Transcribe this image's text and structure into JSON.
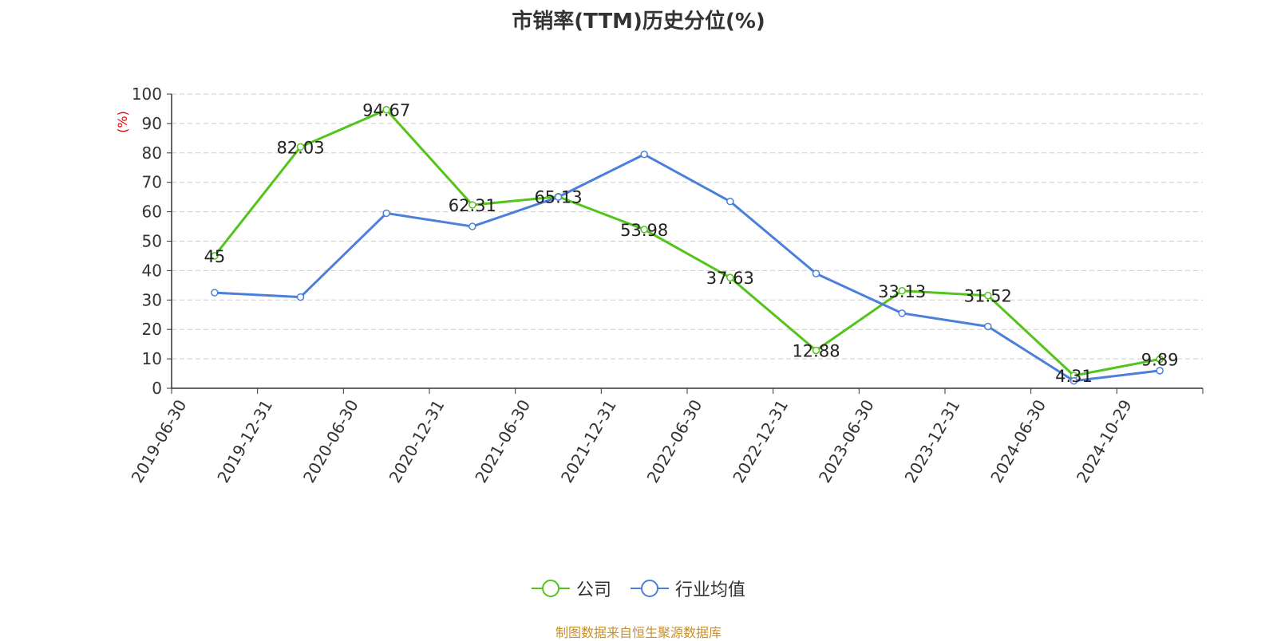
{
  "title": "市销率(TTM)历史分位(%)",
  "source": "制图数据来自恒生聚源数据库",
  "chart_data": {
    "type": "line",
    "title": "市销率(TTM)历史分位(%)",
    "ylabel": "(%)",
    "ylim": [
      0,
      100
    ],
    "yticks": [
      0,
      10,
      20,
      30,
      40,
      50,
      60,
      70,
      80,
      90,
      100
    ],
    "grid": true,
    "legend_position": "bottom-center",
    "categories": [
      "2019-06-30",
      "2019-12-31",
      "2020-06-30",
      "2020-12-31",
      "2021-06-30",
      "2021-12-31",
      "2022-06-30",
      "2022-12-31",
      "2023-06-30",
      "2023-12-31",
      "2024-06-30",
      "2024-10-29"
    ],
    "series": [
      {
        "name": "公司",
        "color": "#52c41a",
        "show_labels": true,
        "values": [
          45,
          82.03,
          94.67,
          62.31,
          65.13,
          53.98,
          37.63,
          12.88,
          33.13,
          31.52,
          4.31,
          9.89
        ]
      },
      {
        "name": "行业均值",
        "color": "#4a7fdc",
        "show_labels": false,
        "values": [
          32.5,
          31,
          59.5,
          55,
          65,
          79.5,
          63.5,
          39,
          25.5,
          21,
          2.5,
          6
        ]
      }
    ]
  }
}
